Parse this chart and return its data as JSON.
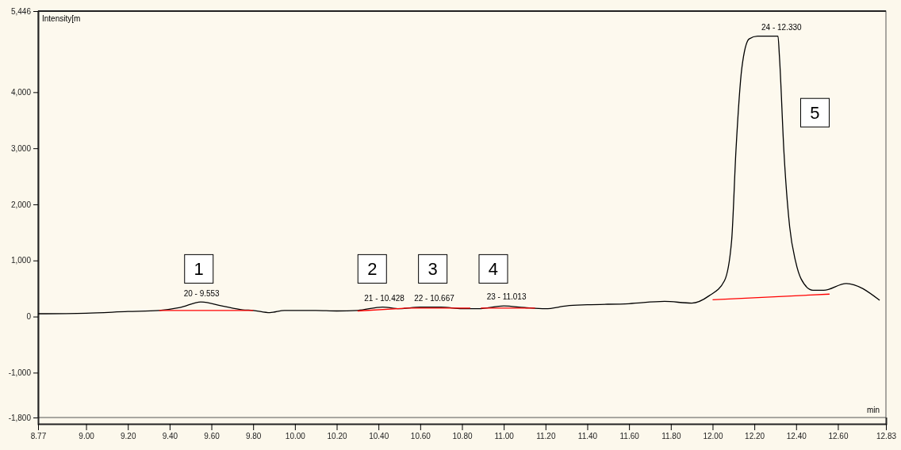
{
  "chart_data": {
    "type": "line",
    "xlabel": "min",
    "ylabel": "Intensity[m",
    "xlim": [
      8.77,
      12.83
    ],
    "ylim": [
      -1800,
      5446
    ],
    "xticks": [
      {
        "value": 8.77,
        "label": "8.77"
      },
      {
        "value": 9,
        "label": "9.00"
      },
      {
        "value": 9.2,
        "label": "9.20"
      },
      {
        "value": 9.4,
        "label": "9.40"
      },
      {
        "value": 9.6,
        "label": "9.60"
      },
      {
        "value": 9.8,
        "label": "9.80"
      },
      {
        "value": 10,
        "label": "10.00"
      },
      {
        "value": 10.2,
        "label": "10.20"
      },
      {
        "value": 10.4,
        "label": "10.40"
      },
      {
        "value": 10.6,
        "label": "10.60"
      },
      {
        "value": 10.8,
        "label": "10.80"
      },
      {
        "value": 11,
        "label": "11.00"
      },
      {
        "value": 11.2,
        "label": "11.20"
      },
      {
        "value": 11.4,
        "label": "11.40"
      },
      {
        "value": 11.6,
        "label": "11.60"
      },
      {
        "value": 11.8,
        "label": "11.80"
      },
      {
        "value": 12,
        "label": "12.00"
      },
      {
        "value": 12.2,
        "label": "12.20"
      },
      {
        "value": 12.4,
        "label": "12.40"
      },
      {
        "value": 12.6,
        "label": "12.60"
      },
      {
        "value": 12.83,
        "label": "12.83"
      }
    ],
    "yticks": [
      {
        "value": -1800,
        "label": "-1,800"
      },
      {
        "value": -1000,
        "label": "-1,000"
      },
      0,
      {
        "value": 1000,
        "label": "1,000"
      },
      {
        "value": 2000,
        "label": "2,000"
      },
      {
        "value": 3000,
        "label": "3,000"
      },
      {
        "value": 4000,
        "label": "4,000"
      },
      {
        "value": 5446,
        "label": "5,446"
      }
    ],
    "grid": false,
    "marker": "none",
    "line_style": "solid",
    "series": [
      {
        "color": "#000000",
        "x": [
          8.77,
          9.0,
          9.2,
          9.35,
          9.45,
          9.55,
          9.65,
          9.75,
          9.8,
          9.88,
          9.95,
          10.1,
          10.2,
          10.3,
          10.42,
          10.5,
          10.6,
          10.7,
          10.8,
          10.88,
          11.0,
          11.1,
          11.2,
          11.3,
          11.4,
          11.6,
          11.77,
          11.9,
          11.983,
          12.057,
          12.091,
          12.112,
          12.14,
          12.175,
          12.215,
          12.313,
          12.32,
          12.342,
          12.369,
          12.397,
          12.424,
          12.48,
          12.532,
          12.64,
          12.8
        ],
        "values": [
          50,
          60,
          90,
          110,
          160,
          260,
          190,
          120,
          110,
          70,
          110,
          110,
          100,
          110,
          170,
          140,
          170,
          170,
          140,
          140,
          190,
          160,
          140,
          190,
          210,
          230,
          270,
          240,
          370,
          640,
          1350,
          2970,
          4430,
          4950,
          5000,
          5000,
          4640,
          2910,
          1600,
          990,
          670,
          470,
          470,
          590,
          290
        ]
      },
      {
        "color": "#ff0000",
        "x": [
          9.35,
          9.8,
          null,
          10.3,
          10.53,
          null,
          10.53,
          10.84,
          null,
          10.89,
          11.15,
          null,
          12.0,
          12.56
        ],
        "values": [
          110,
          110,
          null,
          100,
          150,
          null,
          150,
          150,
          null,
          150,
          150,
          null,
          300,
          400
        ]
      }
    ],
    "annotations": [
      {
        "text": "20 - 9.553",
        "x": 9.553,
        "y": 255
      },
      {
        "text": "21 - 10.428",
        "x": 10.428,
        "y": 170
      },
      {
        "text": "22 - 10.667",
        "x": 10.667,
        "y": 170
      },
      {
        "text": "23 - 11.013",
        "x": 11.013,
        "y": 185
      },
      {
        "text": "24 - 12.330",
        "x": 12.33,
        "y": 5000
      },
      {
        "text": "1",
        "x": 9.54,
        "y": 850
      },
      {
        "text": "2",
        "x": 10.37,
        "y": 850
      },
      {
        "text": "3",
        "x": 10.66,
        "y": 850
      },
      {
        "text": "4",
        "x": 10.95,
        "y": 850
      },
      {
        "text": "5",
        "x": 12.49,
        "y": 3635
      }
    ]
  }
}
